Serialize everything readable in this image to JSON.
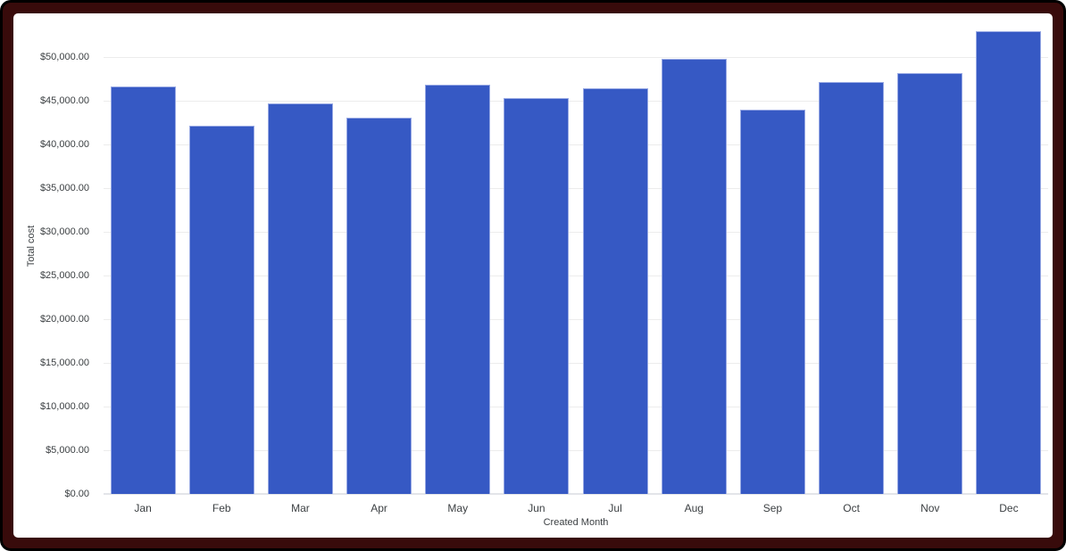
{
  "window": {
    "frame_outer_color": "#000000",
    "frame_inner_color": "#380b0b",
    "background_color": "#ffffff"
  },
  "chart_data": {
    "type": "bar",
    "title": "",
    "xlabel": "Created Month",
    "ylabel": "Total cost",
    "categories": [
      "Jan",
      "Feb",
      "Mar",
      "Apr",
      "May",
      "Jun",
      "Jul",
      "Aug",
      "Sep",
      "Oct",
      "Nov",
      "Dec"
    ],
    "values": [
      46650,
      42150,
      44700,
      43100,
      46800,
      45300,
      46400,
      49800,
      44000,
      47100,
      48150,
      53000
    ],
    "ylim": [
      0,
      55000
    ],
    "ytick_step": 5000,
    "yticks": [
      0,
      5000,
      10000,
      15000,
      20000,
      25000,
      30000,
      35000,
      40000,
      45000,
      50000
    ],
    "ytick_labels": [
      "$0.00",
      "$5,000.00",
      "$10,000.00",
      "$15,000.00",
      "$20,000.00",
      "$25,000.00",
      "$30,000.00",
      "$35,000.00",
      "$40,000.00",
      "$45,000.00",
      "$50,000.00"
    ],
    "grid": true,
    "legend": "none",
    "bar_color": "#3659c4",
    "bar_edge_color": "#98a9e4",
    "gridline_color": "#ececec",
    "axis_text_color": "#3c4043"
  }
}
